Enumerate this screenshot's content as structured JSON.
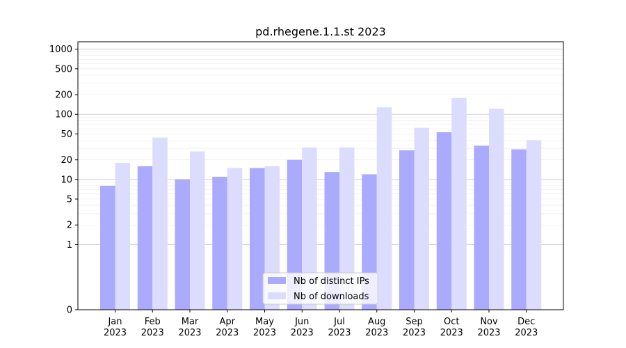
{
  "chart_data": {
    "type": "bar",
    "title": "pd.rhegene.1.1.st 2023",
    "xlabel": "",
    "ylabel": "",
    "yscale": "symlog",
    "ylim": [
      0,
      1300
    ],
    "yticks": [
      0,
      1,
      2,
      5,
      10,
      20,
      50,
      100,
      200,
      500,
      1000
    ],
    "grid": true,
    "legend_position": "bottom-center",
    "categories": [
      [
        "Jan",
        "2023"
      ],
      [
        "Feb",
        "2023"
      ],
      [
        "Mar",
        "2023"
      ],
      [
        "Apr",
        "2023"
      ],
      [
        "May",
        "2023"
      ],
      [
        "Jun",
        "2023"
      ],
      [
        "Jul",
        "2023"
      ],
      [
        "Aug",
        "2023"
      ],
      [
        "Sep",
        "2023"
      ],
      [
        "Oct",
        "2023"
      ],
      [
        "Nov",
        "2023"
      ],
      [
        "Dec",
        "2023"
      ]
    ],
    "series": [
      {
        "name": "Nb of distinct IPs",
        "color": "#aaaaff",
        "values": [
          8,
          16,
          10,
          11,
          15,
          20,
          13,
          12,
          28,
          53,
          33,
          29
        ]
      },
      {
        "name": "Nb of downloads",
        "color": "#dcdcff",
        "values": [
          18,
          44,
          27,
          15,
          16,
          31,
          31,
          128,
          62,
          178,
          122,
          40
        ]
      }
    ]
  }
}
